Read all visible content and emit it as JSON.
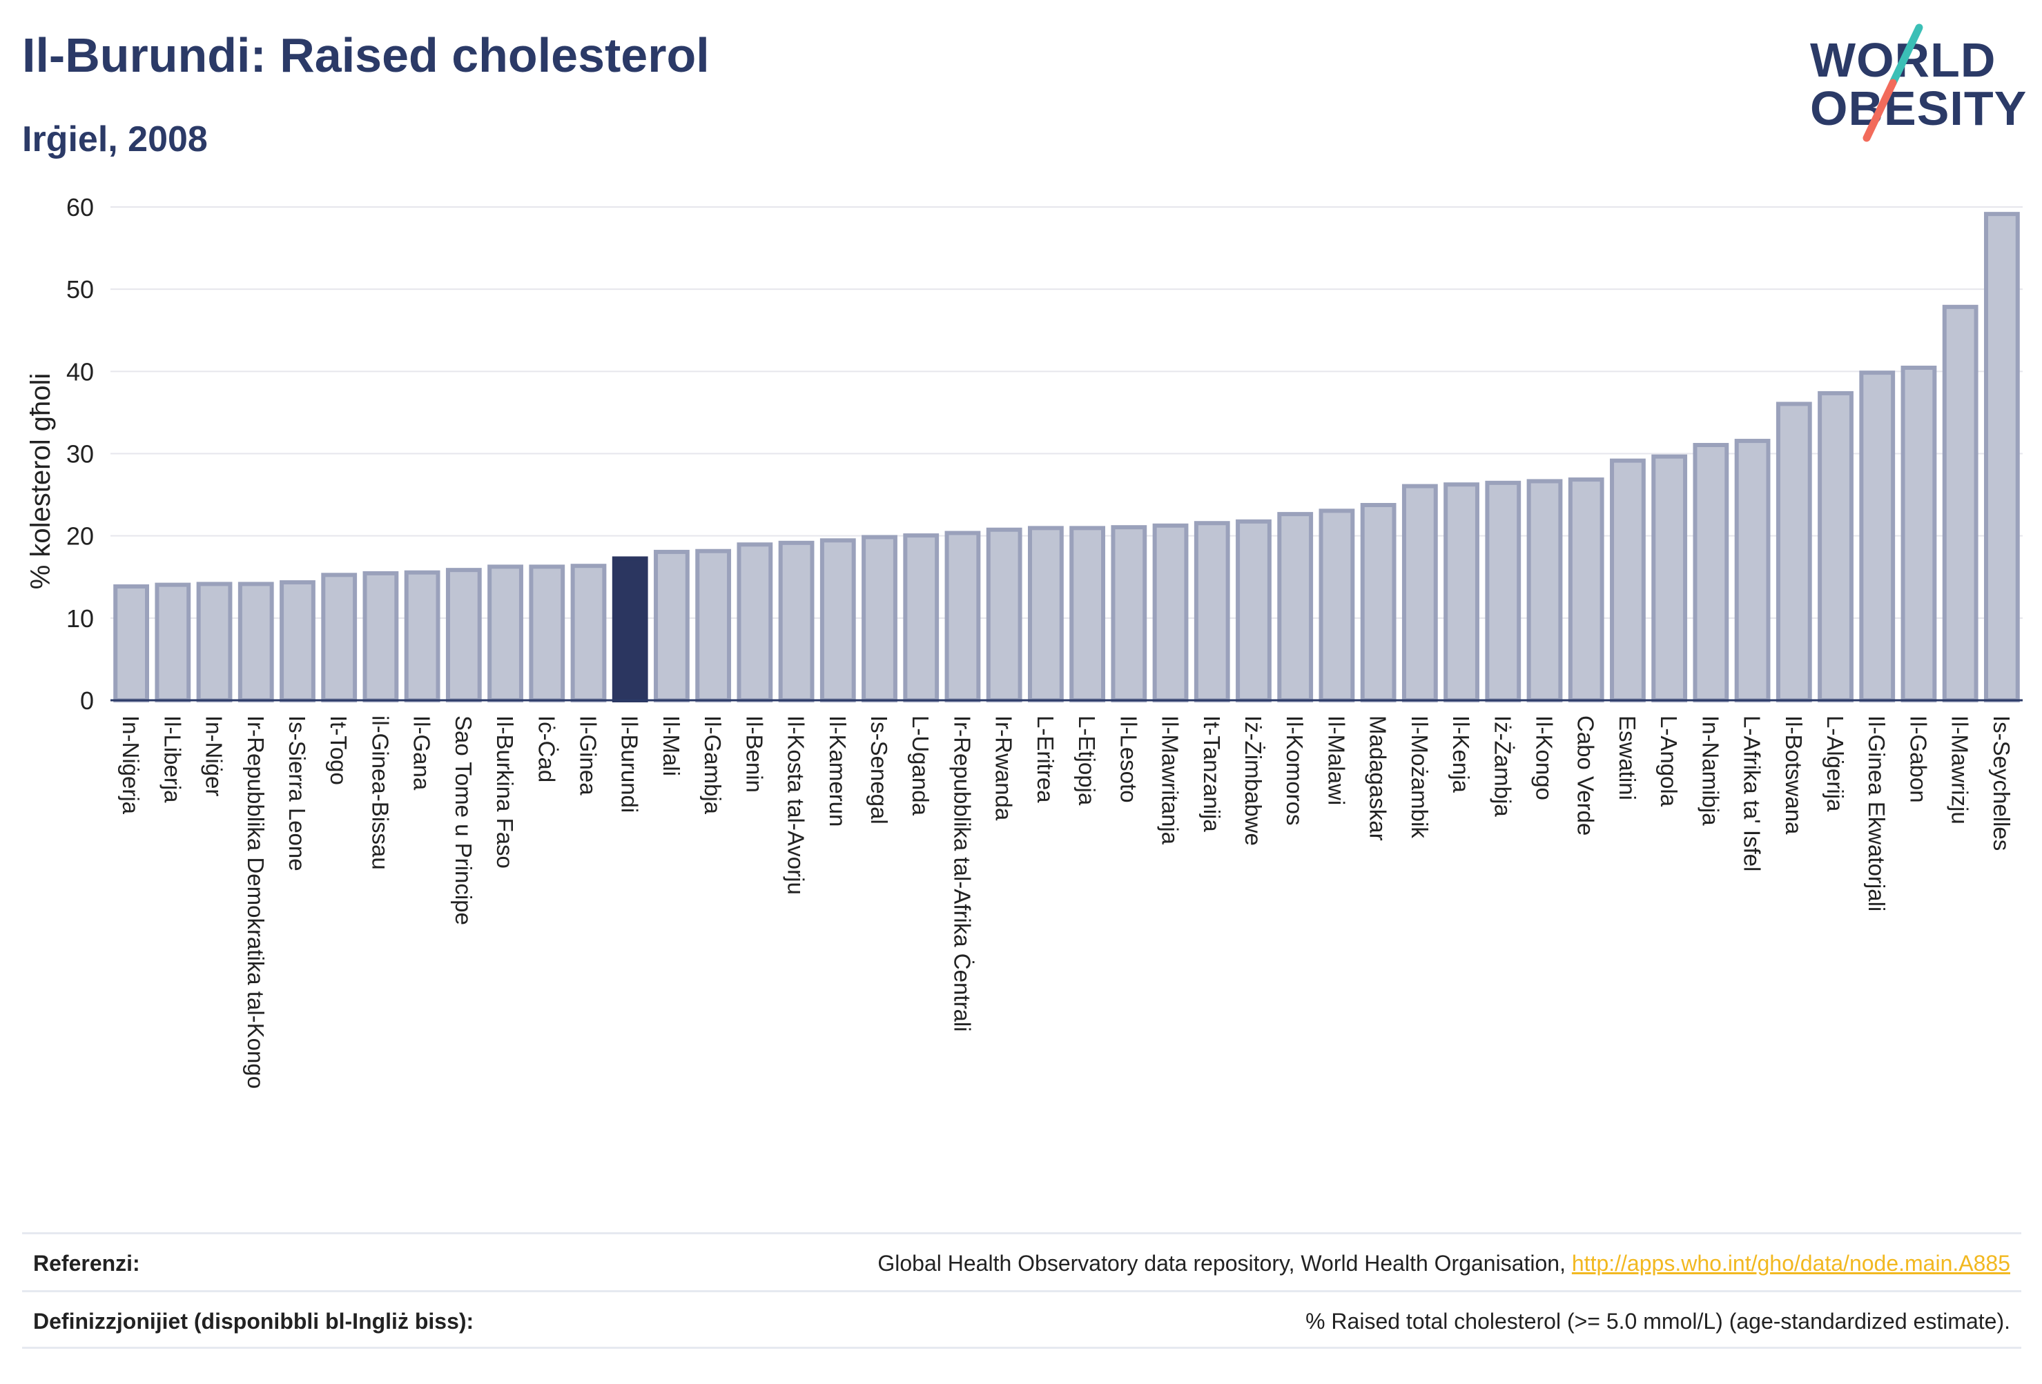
{
  "header": {
    "title": "Il-Burundi: Raised cholesterol",
    "subtitle": "Irġiel, 2008"
  },
  "logo": {
    "line1": "WORLD",
    "line2": "OBESITY",
    "colors": {
      "text": "#2b3a67",
      "slash_top": "#3bbfb6",
      "slash_bottom": "#f26b5b"
    }
  },
  "chart_data": {
    "type": "bar",
    "title": "",
    "xlabel": "",
    "ylabel": "% kolesterol għoli",
    "ylim": [
      0,
      60
    ],
    "yticks": [
      0,
      10,
      20,
      30,
      40,
      50,
      60
    ],
    "grid": true,
    "highlight_category": "Il-Burundi",
    "colors": {
      "bar": "#bfc4d3",
      "bar_border": "#9aa1bb",
      "highlight": "#2b3660",
      "grid": "#e6e6ec",
      "axis": "#2b3a67"
    },
    "categories": [
      "In-Niġerja",
      "Il-Liberja",
      "In-Niġer",
      "Ir-Repubblika Demokratika tal-Kongo",
      "Is-Sierra Leone",
      "It-Togo",
      "il-Ginea-Bissau",
      "Il-Gana",
      "Sao Tome u Principe",
      "Il-Burkina Faso",
      "Iċ-Ċad",
      "Il-Ginea",
      "Il-Burundi",
      "Il-Mali",
      "Il-Gambja",
      "Il-Benin",
      "Il-Kosta tal-Avorju",
      "Il-Kamerun",
      "Is-Senegal",
      "L-Uganda",
      "Ir-Repubblika tal-Afrika Ċentrali",
      "Ir-Rwanda",
      "L-Eritrea",
      "L-Etjopja",
      "Il-Lesoto",
      "Il-Mawritanja",
      "It-Tanzanija",
      "Iż-Żimbabwe",
      "Il-Komoros",
      "Il-Malawi",
      "Madagaskar",
      "Il-Możambik",
      "Il-Kenja",
      "Iż-Żambja",
      "Il-Kongo",
      "Cabo Verde",
      "Eswatini",
      "L-Angola",
      "In-Namibja",
      "L-Afrika ta' Isfel",
      "Il-Botswana",
      "L-Alġerija",
      "Il-Ginea Ekwatorjali",
      "Il-Gabon",
      "Il-Mawrizju",
      "Is-Seychelles"
    ],
    "values": [
      14.1,
      14.3,
      14.4,
      14.4,
      14.6,
      15.5,
      15.7,
      15.8,
      16.1,
      16.5,
      16.5,
      16.6,
      17.5,
      18.3,
      18.4,
      19.2,
      19.4,
      19.7,
      20.1,
      20.3,
      20.6,
      21.0,
      21.2,
      21.2,
      21.3,
      21.5,
      21.8,
      22.0,
      22.9,
      23.3,
      24.0,
      26.3,
      26.5,
      26.7,
      26.9,
      27.1,
      29.4,
      29.9,
      31.3,
      31.8,
      36.3,
      37.6,
      40.1,
      40.7,
      48.1,
      59.4
    ]
  },
  "footer": {
    "references_label": "Referenzi:",
    "references_text": "Global Health Observatory data repository, World Health Organisation, ",
    "references_link": "http://apps.who.int/gho/data/node.main.A885",
    "definitions_label": "Definizzjonijiet (disponibbli bl-Ingliż biss):",
    "definitions_text": "% Raised total cholesterol (>= 5.0 mmol/L) (age-standardized estimate)."
  }
}
